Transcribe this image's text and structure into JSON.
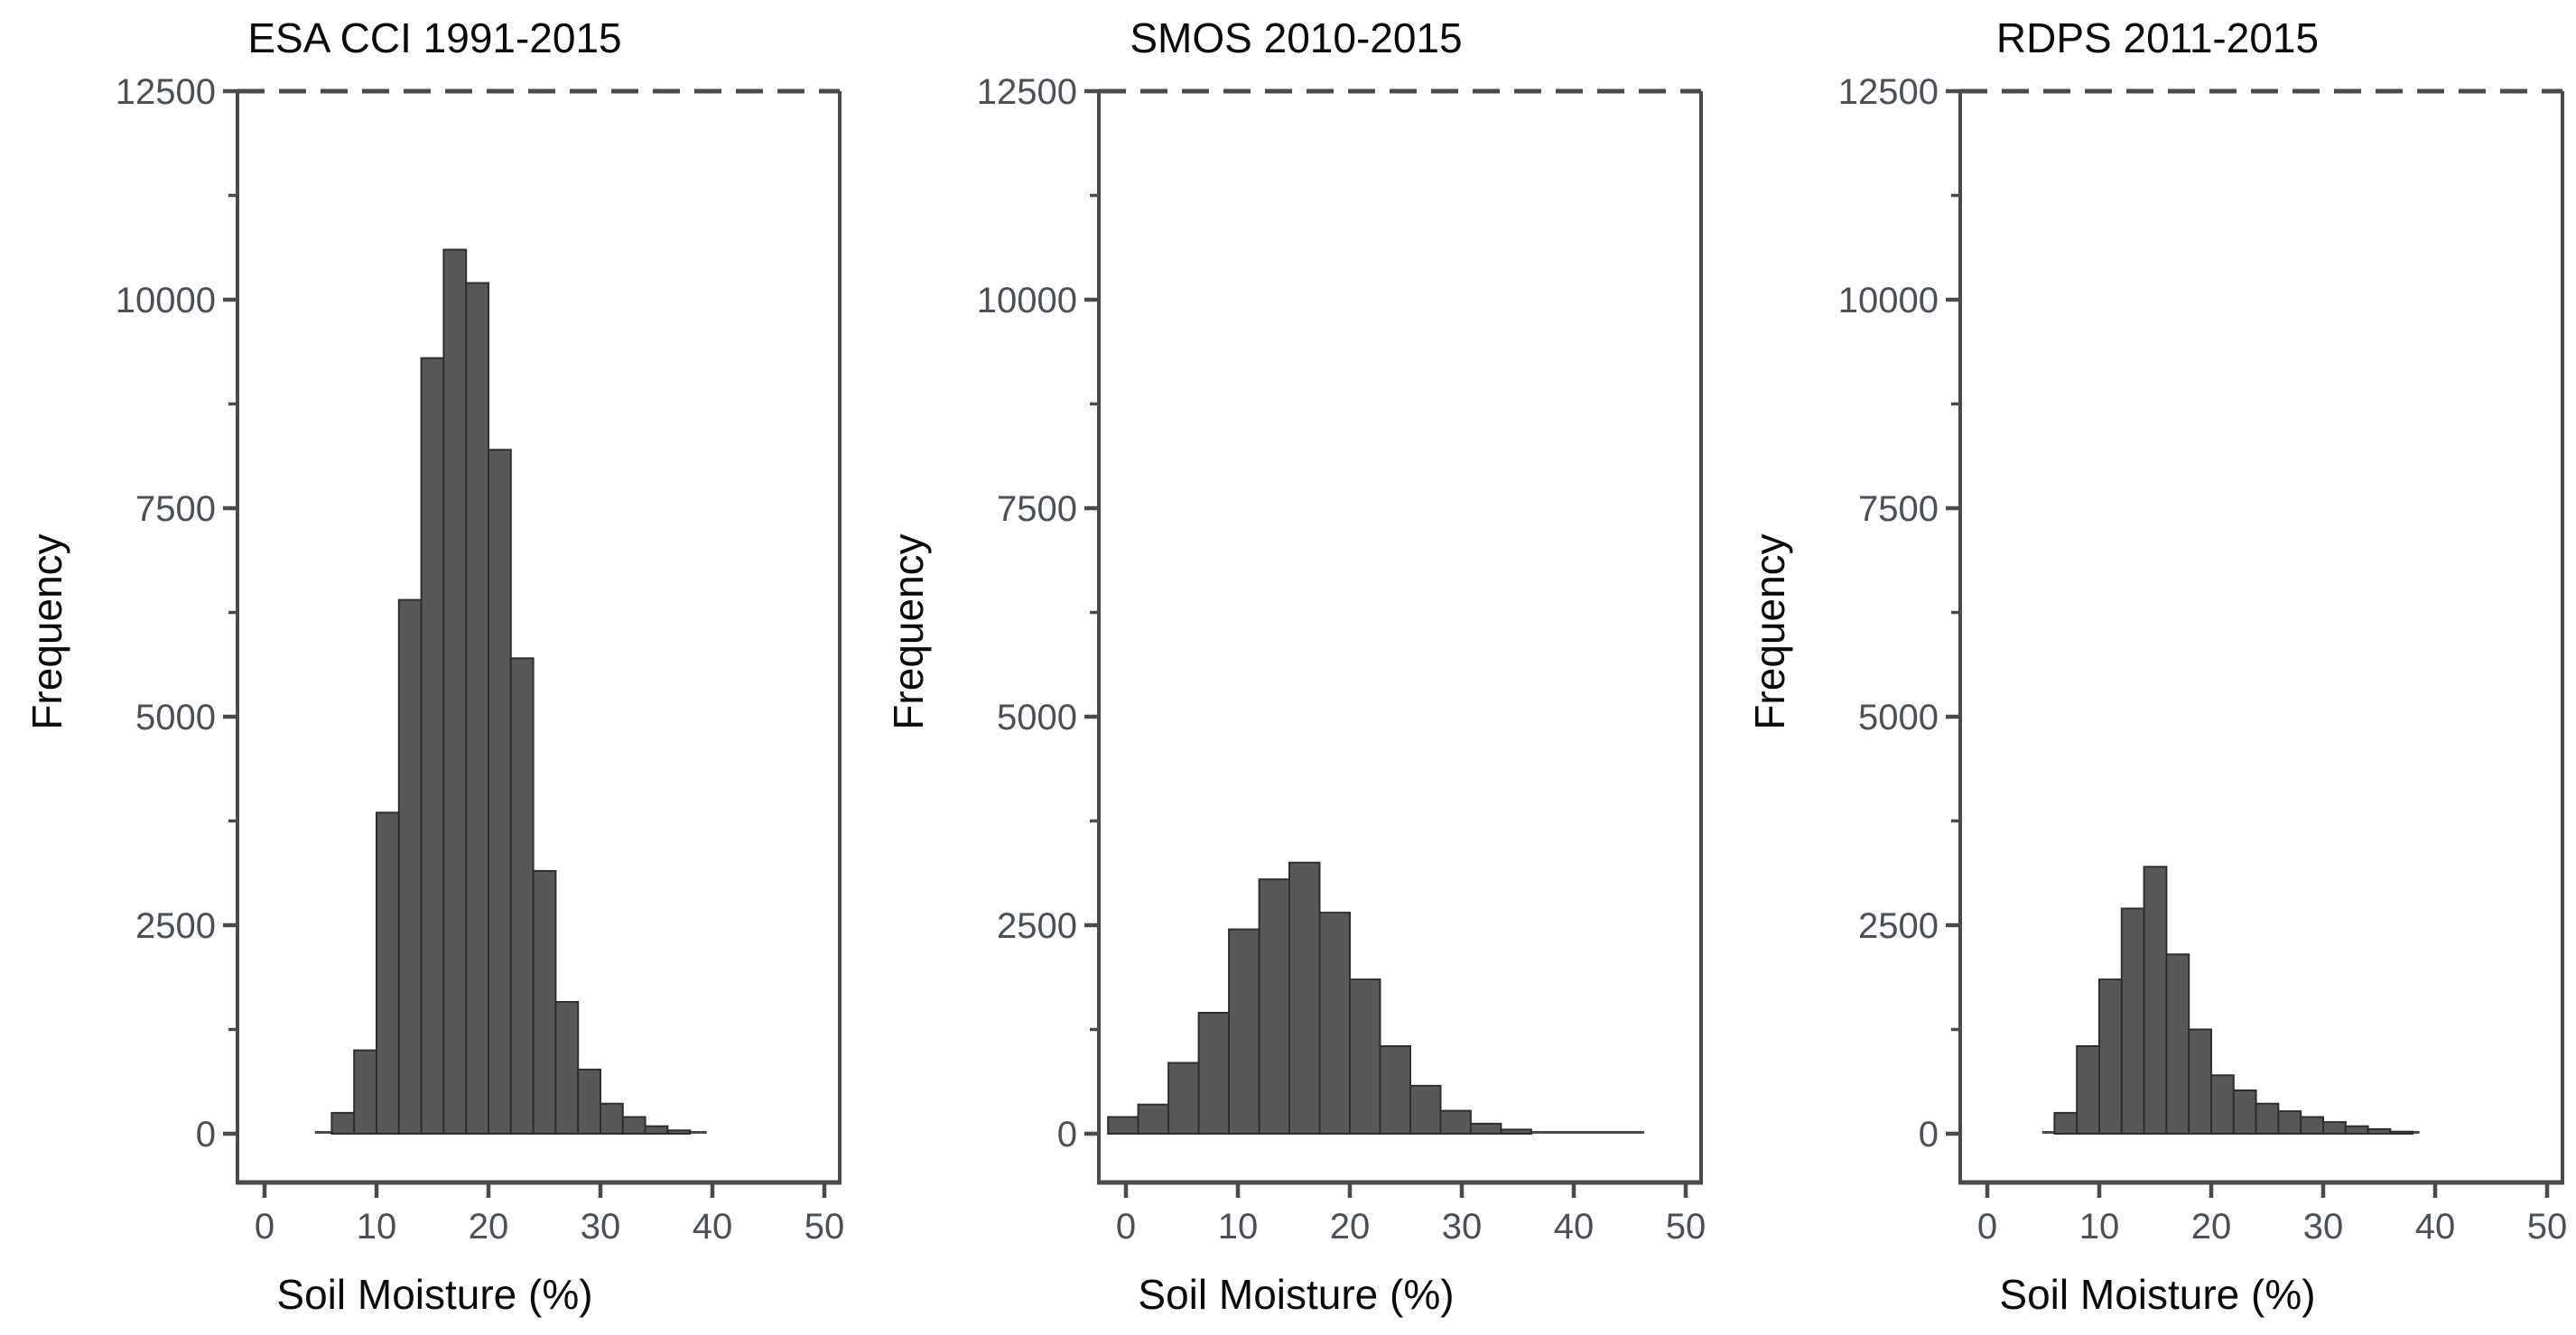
{
  "figure": {
    "background": "#ffffff",
    "bar_fill": "#58585a",
    "bar_stroke": "#2e2e2e",
    "frame_color": "#4a4a4a",
    "tick_label_color": "#4b5057",
    "text_color": "#0a0a0a"
  },
  "chart_data": [
    {
      "type": "bar",
      "title": "ESA CCI 1991-2015",
      "xlabel": "Soil Moisture (%)",
      "ylabel": "Frequency",
      "xlim": [
        -2.4,
        51.4
      ],
      "ylim": [
        0,
        12500
      ],
      "xticks": [
        0,
        10,
        20,
        30,
        40,
        50
      ],
      "yticks": [
        0,
        2500,
        5000,
        7500,
        10000,
        12500
      ],
      "yticks_minor": [
        1250,
        3750,
        6250,
        8750,
        11250
      ],
      "grid": false,
      "legend": false,
      "bins": {
        "start": 6,
        "width": 2,
        "counts": [
          250,
          1000,
          3850,
          6400,
          9300,
          10600,
          10200,
          8200,
          5700,
          3150,
          1580,
          770,
          360,
          200,
          90,
          40
        ]
      },
      "tail_line": {
        "from": 4.5,
        "to": 39.5
      }
    },
    {
      "type": "bar",
      "title": "SMOS 2010-2015",
      "xlabel": "Soil Moisture (%)",
      "ylabel": "Frequency",
      "xlim": [
        -2.4,
        51.4
      ],
      "ylim": [
        0,
        12500
      ],
      "xticks": [
        0,
        10,
        20,
        30,
        40,
        50
      ],
      "yticks": [
        0,
        2500,
        5000,
        7500,
        10000,
        12500
      ],
      "yticks_minor": [
        1250,
        3750,
        6250,
        8750,
        11250
      ],
      "grid": false,
      "legend": false,
      "bins": {
        "start": -1.6,
        "width": 2.7,
        "counts": [
          200,
          350,
          850,
          1450,
          2450,
          3050,
          3250,
          2650,
          1850,
          1050,
          575,
          275,
          120,
          50
        ]
      },
      "tail_line": {
        "from": -1.6,
        "to": 46.3
      }
    },
    {
      "type": "bar",
      "title": "RDPS 2011-2015",
      "xlabel": "Soil Moisture (%)",
      "ylabel": "Frequency",
      "xlim": [
        -2.4,
        51.4
      ],
      "ylim": [
        0,
        12500
      ],
      "xticks": [
        0,
        10,
        20,
        30,
        40,
        50
      ],
      "yticks": [
        0,
        2500,
        5000,
        7500,
        10000,
        12500
      ],
      "yticks_minor": [
        1250,
        3750,
        6250,
        8750,
        11250
      ],
      "grid": false,
      "legend": false,
      "bins": {
        "start": 6,
        "width": 2,
        "counts": [
          250,
          1050,
          1850,
          2700,
          3200,
          2150,
          1250,
          700,
          520,
          360,
          270,
          200,
          140,
          90,
          55,
          25
        ]
      },
      "tail_line": {
        "from": 4.9,
        "to": 38.6
      }
    }
  ]
}
